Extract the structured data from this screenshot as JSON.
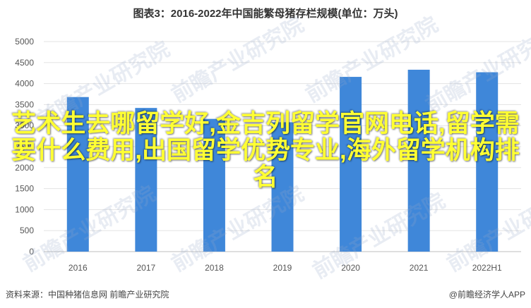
{
  "chart_data": {
    "type": "bar",
    "title": "图表3：2016-2022年中国能繁母猪存栏规模(单位：万头)",
    "categories": [
      "2016",
      "2017",
      "2018",
      "2019",
      "2020",
      "2021",
      "2022H1"
    ],
    "values": [
      3680,
      3420,
      3160,
      3080,
      4160,
      4330,
      4270
    ],
    "yticks": [
      0,
      500,
      1000,
      1500,
      2000,
      2500,
      3000,
      3500,
      4000,
      4500,
      5000
    ],
    "ylim": [
      0,
      5000
    ],
    "grid": true,
    "xlabel": "",
    "ylabel": "",
    "bar_color": "#3f87d9"
  },
  "overlay_text": "艺术生去哪留学好,金吉列留学官网电话,留学需要什么费用,出国留学优势专业,海外留学机构排名",
  "watermark_text": "前瞻产业研究院",
  "footer": {
    "source": "资料来源：中国种猪信息网 前瞻产业研究院",
    "brand": "@前瞻经济学人APP"
  }
}
